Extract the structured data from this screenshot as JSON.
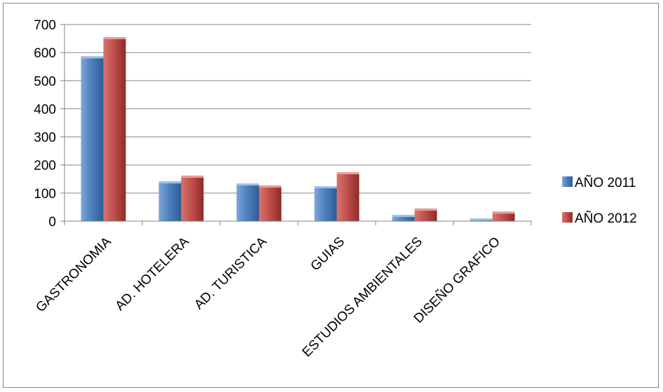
{
  "chart_data": {
    "type": "bar",
    "categories": [
      "GASTRONOMIA",
      "AD. HOTELERA",
      "AD. TURISTICA",
      "GUIAS",
      "ESTUDIOS AMBIENTALES",
      "DISEÑO GRAFICO"
    ],
    "series": [
      {
        "name": "AÑO 2011",
        "values": [
          580,
          135,
          127,
          117,
          15,
          2
        ],
        "color": "#4f81bd"
      },
      {
        "name": "AÑO 2012",
        "values": [
          648,
          155,
          120,
          167,
          38,
          27
        ],
        "color": "#c0504d"
      }
    ],
    "ylim": [
      0,
      700
    ],
    "yticks": [
      0,
      100,
      200,
      300,
      400,
      500,
      600,
      700
    ],
    "grid": true,
    "legend_position": "right"
  }
}
